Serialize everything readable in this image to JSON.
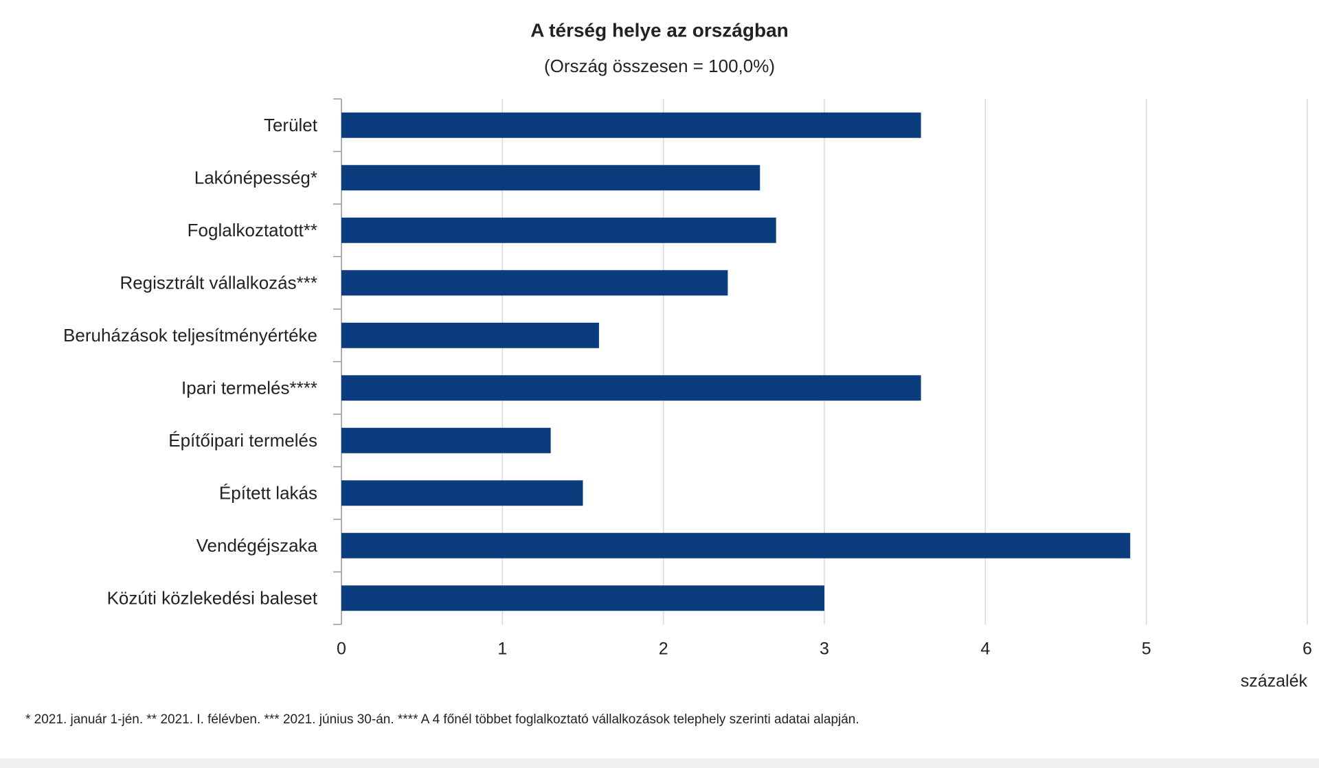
{
  "chart_data": {
    "type": "hbar",
    "title": "A térség helye az országban",
    "subtitle": "(Ország összesen = 100,0%)",
    "x_label": "százalék",
    "footnote": "* 2021. január 1-jén. ** 2021. I. félévben. *** 2021. június 30-án. **** A 4 főnél többet foglalkoztató vállalkozások telephely szerinti adatai alapján.",
    "categories": [
      "Terület",
      "Lakónépesség*",
      "Foglalkoztatott**",
      "Regisztrált vállalkozás***",
      "Beruházások teljesítményértéke",
      "Ipari termelés****",
      "Építőipari termelés",
      "Épített lakás",
      "Vendégéjszaka",
      "Közúti közlekedési baleset"
    ],
    "values": [
      3.6,
      2.6,
      2.7,
      2.4,
      1.6,
      3.6,
      1.3,
      1.5,
      4.9,
      3.0
    ],
    "color": "#0b3d7e",
    "xlim": [
      0,
      6
    ],
    "xticks": [
      0,
      1,
      2,
      3,
      4,
      5,
      6
    ],
    "grid": true
  }
}
